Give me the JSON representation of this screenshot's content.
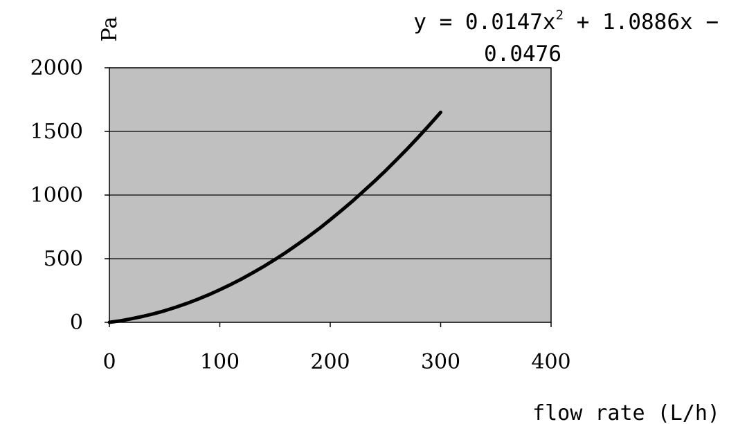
{
  "chart_data": {
    "type": "line",
    "title": "",
    "xlabel": "flow rate (L/h)",
    "ylabel": "Pa",
    "xlim": [
      0,
      400
    ],
    "ylim": [
      0,
      2000
    ],
    "xticks": [
      "0",
      "100",
      "200",
      "300",
      "400"
    ],
    "yticks": [
      "0",
      "500",
      "1000",
      "1500",
      "2000"
    ],
    "grid": "horizontal",
    "plot_background": "#c0c0c0",
    "line_color": "#000000",
    "annotation": {
      "line1_prefix": "y = 0.0147x",
      "line1_exponent": "2",
      "line1_suffix": " + 1.0886x −",
      "line2": "0.0476"
    },
    "series": [
      {
        "x": [
          0,
          10,
          20,
          30,
          40,
          50,
          60,
          70,
          80,
          90,
          100,
          110,
          120,
          130,
          140,
          150,
          160,
          170,
          180,
          190,
          200,
          210,
          220,
          230,
          240,
          250,
          260,
          270,
          280,
          290,
          300
        ],
        "y": [
          0,
          12,
          28,
          46,
          67,
          91,
          118,
          148,
          181,
          217,
          256,
          298,
          342,
          390,
          440,
          494,
          550,
          610,
          672,
          737,
          806,
          877,
          951,
          1029,
          1108,
          1191,
          1277,
          1366,
          1457,
          1552,
          1650
        ]
      }
    ]
  }
}
